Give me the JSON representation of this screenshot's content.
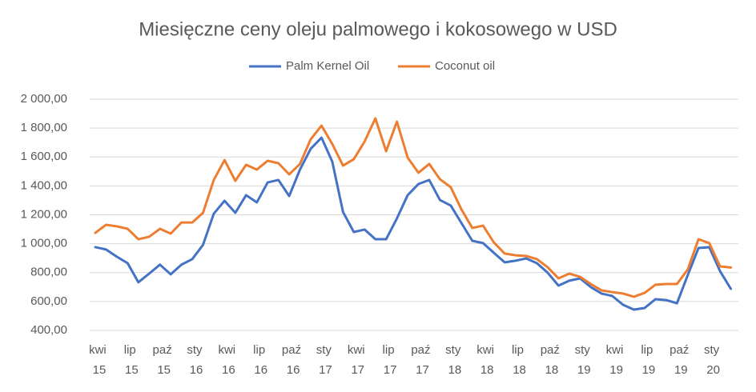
{
  "chart_data": {
    "type": "line",
    "title": "Miesięczne ceny oleju palmowego i kokosowego w USD",
    "categories": [
      "kwi 15",
      null,
      null,
      "lip 15",
      null,
      null,
      "paź 15",
      null,
      null,
      "sty 16",
      null,
      null,
      "kwi 16",
      null,
      null,
      "lip 16",
      null,
      null,
      "paź 16",
      null,
      null,
      "sty 17",
      null,
      null,
      "kwi 17",
      null,
      null,
      "lip 17",
      null,
      null,
      "paź 17",
      null,
      null,
      "sty 18",
      null,
      null,
      "kwi 18",
      null,
      null,
      "lip 18",
      null,
      null,
      "paź 18",
      null,
      null,
      "sty 19",
      null,
      null,
      "kwi 19",
      null,
      null,
      "lip 19",
      null,
      null,
      "paź 19",
      null,
      null,
      "sty 20",
      null,
      null
    ],
    "series": [
      {
        "name": "Palm Kernel Oil",
        "color": "#4472c4",
        "values": [
          976,
          960,
          910,
          865,
          733,
          793,
          855,
          788,
          855,
          893,
          992,
          1208,
          1297,
          1214,
          1336,
          1286,
          1424,
          1441,
          1330,
          1513,
          1657,
          1734,
          1568,
          1219,
          1081,
          1098,
          1031,
          1031,
          1175,
          1336,
          1413,
          1441,
          1302,
          1264,
          1142,
          1020,
          1004,
          937,
          871,
          882,
          898,
          865,
          799,
          710,
          744,
          760,
          700,
          655,
          638,
          577,
          544,
          555,
          616,
          610,
          588,
          782,
          970,
          976,
          810,
          688
        ]
      },
      {
        "name": "Coconut oil",
        "color": "#ed7d31",
        "values": [
          1075,
          1131,
          1120,
          1103,
          1031,
          1048,
          1103,
          1070,
          1147,
          1147,
          1214,
          1441,
          1579,
          1435,
          1546,
          1513,
          1574,
          1557,
          1480,
          1552,
          1723,
          1817,
          1690,
          1540,
          1585,
          1707,
          1867,
          1640,
          1845,
          1596,
          1491,
          1552,
          1446,
          1391,
          1236,
          1109,
          1125,
          1009,
          932,
          920,
          915,
          893,
          837,
          760,
          793,
          771,
          721,
          677,
          665,
          655,
          633,
          660,
          716,
          721,
          721,
          821,
          1031,
          1004,
          843,
          835
        ]
      }
    ],
    "ylim": [
      400,
      2000
    ],
    "yticks": [
      {
        "value": 400,
        "label": "400,00"
      },
      {
        "value": 600,
        "label": "600,00"
      },
      {
        "value": 800,
        "label": "800,00"
      },
      {
        "value": 1000,
        "label": "1 000,00"
      },
      {
        "value": 1200,
        "label": "1 200,00"
      },
      {
        "value": 1400,
        "label": "1 400,00"
      },
      {
        "value": 1600,
        "label": "1 600,00"
      },
      {
        "value": 1800,
        "label": "1 800,00"
      },
      {
        "value": 2000,
        "label": "2 000,00"
      }
    ],
    "grid": true,
    "legend": "top"
  }
}
